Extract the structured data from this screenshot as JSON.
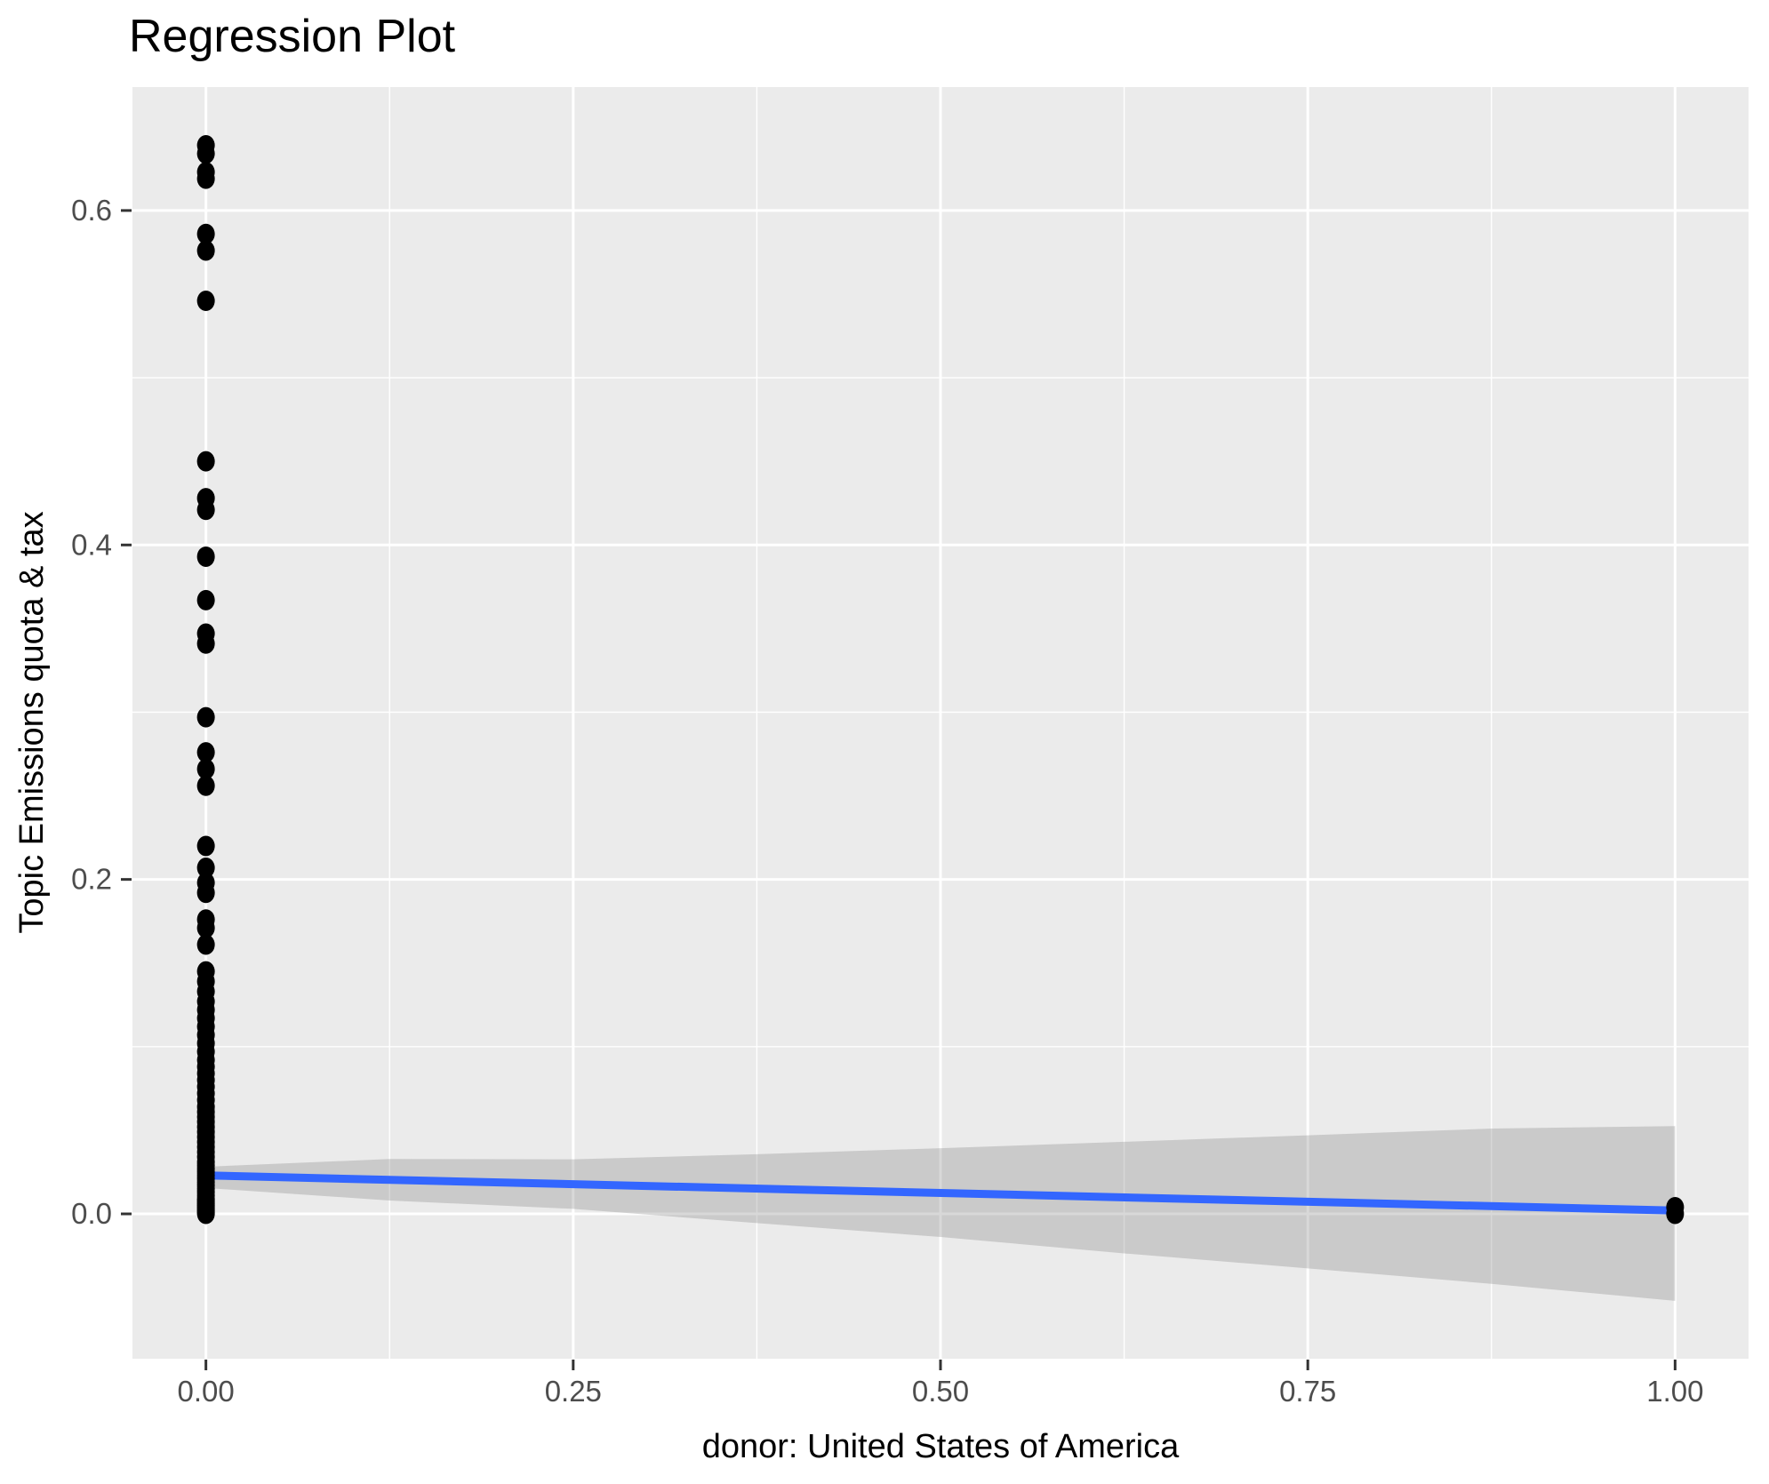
{
  "chart_data": {
    "type": "scatter",
    "title": "Regression Plot",
    "xlabel": "donor: United States of America",
    "ylabel": "Topic Emissions quota & tax",
    "grid": "on",
    "legend": "none",
    "xlim": [
      -0.05,
      1.05
    ],
    "ylim": [
      -0.0866,
      0.6738
    ],
    "x_ticks": {
      "values": [
        0,
        0.25,
        0.5,
        0.75,
        1.0
      ],
      "labels": [
        "0.00",
        "0.25",
        "0.50",
        "0.75",
        "1.00"
      ]
    },
    "y_ticks": {
      "values": [
        0,
        0.2,
        0.4,
        0.6
      ],
      "labels": [
        "0.0",
        "0.2",
        "0.4",
        "0.6"
      ]
    },
    "x_minor_ticks": [
      0.125,
      0.375,
      0.625,
      0.875
    ],
    "y_minor_ticks": [
      0.1,
      0.3,
      0.5
    ],
    "series": [
      {
        "name": "points-at-x-0",
        "x": 0,
        "y": [
          0.639,
          0.634,
          0.623,
          0.619,
          0.586,
          0.576,
          0.546,
          0.45,
          0.428,
          0.421,
          0.393,
          0.367,
          0.347,
          0.341,
          0.297,
          0.276,
          0.266,
          0.256,
          0.22,
          0.207,
          0.198,
          0.192,
          0.176,
          0.171,
          0.161,
          0.145,
          0.139,
          0.133,
          0.127,
          0.122,
          0.117,
          0.112,
          0.107,
          0.102,
          0.097,
          0.092,
          0.088,
          0.084,
          0.08,
          0.076,
          0.072,
          0.068,
          0.064,
          0.061,
          0.058,
          0.055,
          0.052,
          0.049,
          0.046,
          0.043,
          0.04,
          0.037,
          0.034,
          0.031,
          0.029,
          0.027,
          0.025,
          0.023,
          0.021,
          0.019,
          0.017,
          0.015,
          0.013,
          0.011,
          0.009,
          0.008,
          0.007,
          0.006,
          0.005,
          0.004,
          0.003,
          0.002,
          0.001,
          0.0
        ]
      },
      {
        "name": "points-at-x-1",
        "x": 1,
        "y": [
          0.004,
          0.0
        ]
      }
    ],
    "regression_line": {
      "x": [
        0,
        1
      ],
      "y": [
        0.023,
        0.002
      ]
    },
    "confidence_band": {
      "x": [
        0,
        0.125,
        0.25,
        0.375,
        0.5,
        0.625,
        0.75,
        0.875,
        1.0
      ],
      "upper": [
        0.0282,
        0.0328,
        0.0326,
        0.0357,
        0.0393,
        0.0431,
        0.047,
        0.051,
        0.0525
      ],
      "lower": [
        0.0155,
        0.008,
        0.003,
        -0.0055,
        -0.0138,
        -0.0236,
        -0.0326,
        -0.0418,
        -0.052
      ]
    },
    "colors": {
      "panel_background": "#EBEBEB",
      "grid": "#FFFFFF",
      "point": "#000000",
      "regression_line": "#3366FF",
      "ribbon": "#7D7D7D",
      "ribbon_opacity": 0.3,
      "tick_mark": "#333333",
      "tick_label": "#4D4D4D",
      "text": "#000000"
    }
  }
}
